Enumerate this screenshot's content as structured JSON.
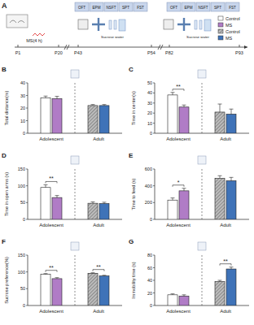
{
  "timeline": {
    "label": "A",
    "ages": [
      "P1",
      "P20",
      "P43",
      "P54",
      "P82",
      "P93"
    ],
    "procedure": "MS(4 h)",
    "tests_adolescent": [
      "OFT",
      "EPM",
      "NSFT",
      "SPT",
      "FST"
    ],
    "tests_adult": [
      "OFT",
      "EPM",
      "NSFT",
      "SPT",
      "FST"
    ],
    "sucrose_adolescent": "Sucrose water",
    "sucrose_adult": "Sucrose water"
  },
  "chart_data": [
    {
      "type": "bar",
      "title": "B",
      "y_label": "Total distance(m)",
      "categories": [
        "Adolescent",
        "Adult"
      ],
      "series": [
        {
          "name": "Control",
          "colors": [
            "#ffffff",
            "#a6a6a6"
          ],
          "values": [
            28,
            22
          ],
          "errors": [
            1.5,
            0.8
          ]
        },
        {
          "name": "MS",
          "colors": [
            "#b07cc6",
            "#3f73b8"
          ],
          "values": [
            27.5,
            22
          ],
          "errors": [
            1.8,
            0.8
          ]
        }
      ],
      "ylim": [
        0,
        40
      ],
      "yticks": [
        0,
        10,
        20,
        30,
        40
      ],
      "annotations": []
    },
    {
      "type": "bar",
      "title": "C",
      "y_label": "Time in center(s)",
      "categories": [
        "Adolescent",
        "Adult"
      ],
      "series": [
        {
          "name": "Control",
          "colors": [
            "#ffffff",
            "#a6a6a6"
          ],
          "values": [
            38,
            21
          ],
          "errors": [
            2.5,
            8
          ]
        },
        {
          "name": "MS",
          "colors": [
            "#b07cc6",
            "#3f73b8"
          ],
          "values": [
            26,
            19
          ],
          "errors": [
            2,
            5
          ]
        }
      ],
      "ylim": [
        0,
        50
      ],
      "yticks": [
        0,
        10,
        20,
        30,
        40,
        50
      ],
      "annotations": [
        {
          "category": "Adolescent",
          "text": "**"
        }
      ]
    },
    {
      "type": "bar",
      "title": "D",
      "y_label": "Time in open arms (s)",
      "categories": [
        "Adolescent",
        "Adult"
      ],
      "series": [
        {
          "name": "Control",
          "colors": [
            "#ffffff",
            "#a6a6a6"
          ],
          "values": [
            95,
            48
          ],
          "errors": [
            8,
            4
          ]
        },
        {
          "name": "MS",
          "colors": [
            "#b07cc6",
            "#3f73b8"
          ],
          "values": [
            65,
            47
          ],
          "errors": [
            6,
            4
          ]
        }
      ],
      "ylim": [
        0,
        150
      ],
      "yticks": [
        0,
        50,
        100,
        150
      ],
      "annotations": [
        {
          "category": "Adolescent",
          "text": "**"
        }
      ]
    },
    {
      "type": "bar",
      "title": "E",
      "y_label": "Time to feed (s)",
      "categories": [
        "Adolescent",
        "Adult"
      ],
      "series": [
        {
          "name": "Control",
          "colors": [
            "#ffffff",
            "#a6a6a6"
          ],
          "values": [
            230,
            490
          ],
          "errors": [
            25,
            30
          ]
        },
        {
          "name": "MS",
          "colors": [
            "#b07cc6",
            "#3f73b8"
          ],
          "values": [
            340,
            460
          ],
          "errors": [
            30,
            40
          ]
        }
      ],
      "ylim": [
        0,
        600
      ],
      "yticks": [
        0,
        200,
        400,
        600
      ],
      "annotations": [
        {
          "category": "Adolescent",
          "text": "*"
        }
      ]
    },
    {
      "type": "bar",
      "title": "F",
      "y_label": "Sucrose preference(%)",
      "categories": [
        "Adolescent",
        "Adult"
      ],
      "series": [
        {
          "name": "Control",
          "colors": [
            "#ffffff",
            "#a6a6a6"
          ],
          "values": [
            93,
            96
          ],
          "errors": [
            2,
            1.5
          ]
        },
        {
          "name": "MS",
          "colors": [
            "#b07cc6",
            "#3f73b8"
          ],
          "values": [
            80,
            88
          ],
          "errors": [
            3,
            2
          ]
        }
      ],
      "ylim": [
        0,
        150
      ],
      "yticks": [
        0,
        50,
        100,
        150
      ],
      "annotations": [
        {
          "category": "Adolescent",
          "text": "**"
        },
        {
          "category": "Adult",
          "text": "**"
        }
      ]
    },
    {
      "type": "bar",
      "title": "G",
      "y_label": "Immobility time (s)",
      "categories": [
        "Adolescent",
        "Adult"
      ],
      "series": [
        {
          "name": "Control",
          "colors": [
            "#ffffff",
            "#a6a6a6"
          ],
          "values": [
            17,
            38
          ],
          "errors": [
            1.5,
            2
          ]
        },
        {
          "name": "MS",
          "colors": [
            "#b07cc6",
            "#3f73b8"
          ],
          "values": [
            15,
            58
          ],
          "errors": [
            2,
            3
          ]
        }
      ],
      "ylim": [
        0,
        80
      ],
      "yticks": [
        0,
        20,
        40,
        60,
        80
      ],
      "annotations": [
        {
          "category": "Adult",
          "text": "**"
        }
      ]
    }
  ]
}
